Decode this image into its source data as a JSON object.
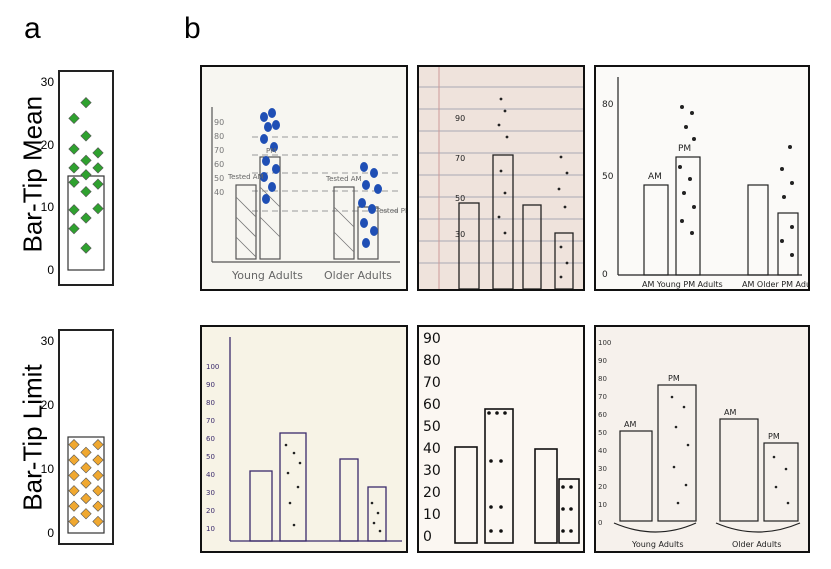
{
  "panels": {
    "a": "a",
    "b": "b"
  },
  "row_labels": {
    "top": "Bar-Tip Mean",
    "bottom": "Bar-Tip Limit"
  },
  "colors": {
    "mean_marker": "#2fa12f",
    "limit_marker": "#f0a830",
    "marker_edge": "#555555",
    "ink": "#1a1a1a",
    "blue_ink": "#1f4fb5"
  },
  "chart_data": [
    {
      "type": "bar",
      "title": "",
      "ylabel": "Bar-Tip Mean",
      "ylim": [
        0,
        30
      ],
      "yticks": [
        "0",
        "10",
        "20",
        "30"
      ],
      "bar_value": 15,
      "marker": "diamond",
      "points": [
        {
          "col": 1,
          "y": 26.7
        },
        {
          "col": 0,
          "y": 24.2
        },
        {
          "col": 1,
          "y": 21.4
        },
        {
          "col": 0,
          "y": 19.3
        },
        {
          "col": 2,
          "y": 18.7
        },
        {
          "col": 1,
          "y": 17.5
        },
        {
          "col": 0,
          "y": 16.3
        },
        {
          "col": 2,
          "y": 16.3
        },
        {
          "col": 1,
          "y": 15.2
        },
        {
          "col": 0,
          "y": 14.0
        },
        {
          "col": 2,
          "y": 13.7
        },
        {
          "col": 1,
          "y": 12.5
        },
        {
          "col": 0,
          "y": 9.6
        },
        {
          "col": 2,
          "y": 9.8
        },
        {
          "col": 1,
          "y": 8.3
        },
        {
          "col": 0,
          "y": 6.6
        },
        {
          "col": 1,
          "y": 3.5
        }
      ]
    },
    {
      "type": "bar",
      "title": "",
      "ylabel": "Bar-Tip Limit",
      "ylim": [
        0,
        30
      ],
      "yticks": [
        "0",
        "10",
        "20",
        "30"
      ],
      "bar_value": 15,
      "marker": "diamond",
      "points": [
        {
          "col": 0,
          "y": 13.8
        },
        {
          "col": 2,
          "y": 13.8
        },
        {
          "col": 1,
          "y": 12.6
        },
        {
          "col": 0,
          "y": 11.4
        },
        {
          "col": 2,
          "y": 11.4
        },
        {
          "col": 1,
          "y": 10.2
        },
        {
          "col": 0,
          "y": 9.0
        },
        {
          "col": 2,
          "y": 9.0
        },
        {
          "col": 1,
          "y": 7.8
        },
        {
          "col": 0,
          "y": 6.6
        },
        {
          "col": 2,
          "y": 6.6
        },
        {
          "col": 1,
          "y": 5.4
        },
        {
          "col": 0,
          "y": 4.2
        },
        {
          "col": 2,
          "y": 4.2
        },
        {
          "col": 1,
          "y": 3.0
        },
        {
          "col": 0,
          "y": 1.8
        },
        {
          "col": 2,
          "y": 1.8
        }
      ]
    }
  ],
  "sketches": {
    "s1": {
      "group1": "Young Adults",
      "group2": "Older Adults",
      "bar1": "Tested AM",
      "bar2": "PM",
      "bar3": "Tested AM",
      "bar4": "Tested PM",
      "ticks": [
        "40",
        "50",
        "60",
        "70",
        "80",
        "90"
      ]
    },
    "s2": {
      "ticks": [
        "30",
        "50",
        "70",
        "90"
      ]
    },
    "s3": {
      "ticks": [
        "0",
        "50",
        "80"
      ],
      "am": "AM",
      "pm": "PM",
      "group1": "AM Young PM Adults",
      "group2": "AM Older PM Adults"
    },
    "s4": {
      "ticks": [
        "10",
        "20",
        "30",
        "40",
        "50",
        "60",
        "70",
        "80",
        "90",
        "100"
      ]
    },
    "s5": {
      "ticks": [
        "0",
        "10",
        "20",
        "30",
        "40",
        "50",
        "60",
        "70",
        "80",
        "90"
      ]
    },
    "s6": {
      "ticks": [
        "0",
        "10",
        "20",
        "30",
        "40",
        "50",
        "60",
        "70",
        "80",
        "90",
        "100"
      ],
      "am1": "AM",
      "pm1": "PM",
      "am2": "AM",
      "pm2": "PM",
      "group1": "Young Adults",
      "group2": "Older Adults"
    }
  }
}
